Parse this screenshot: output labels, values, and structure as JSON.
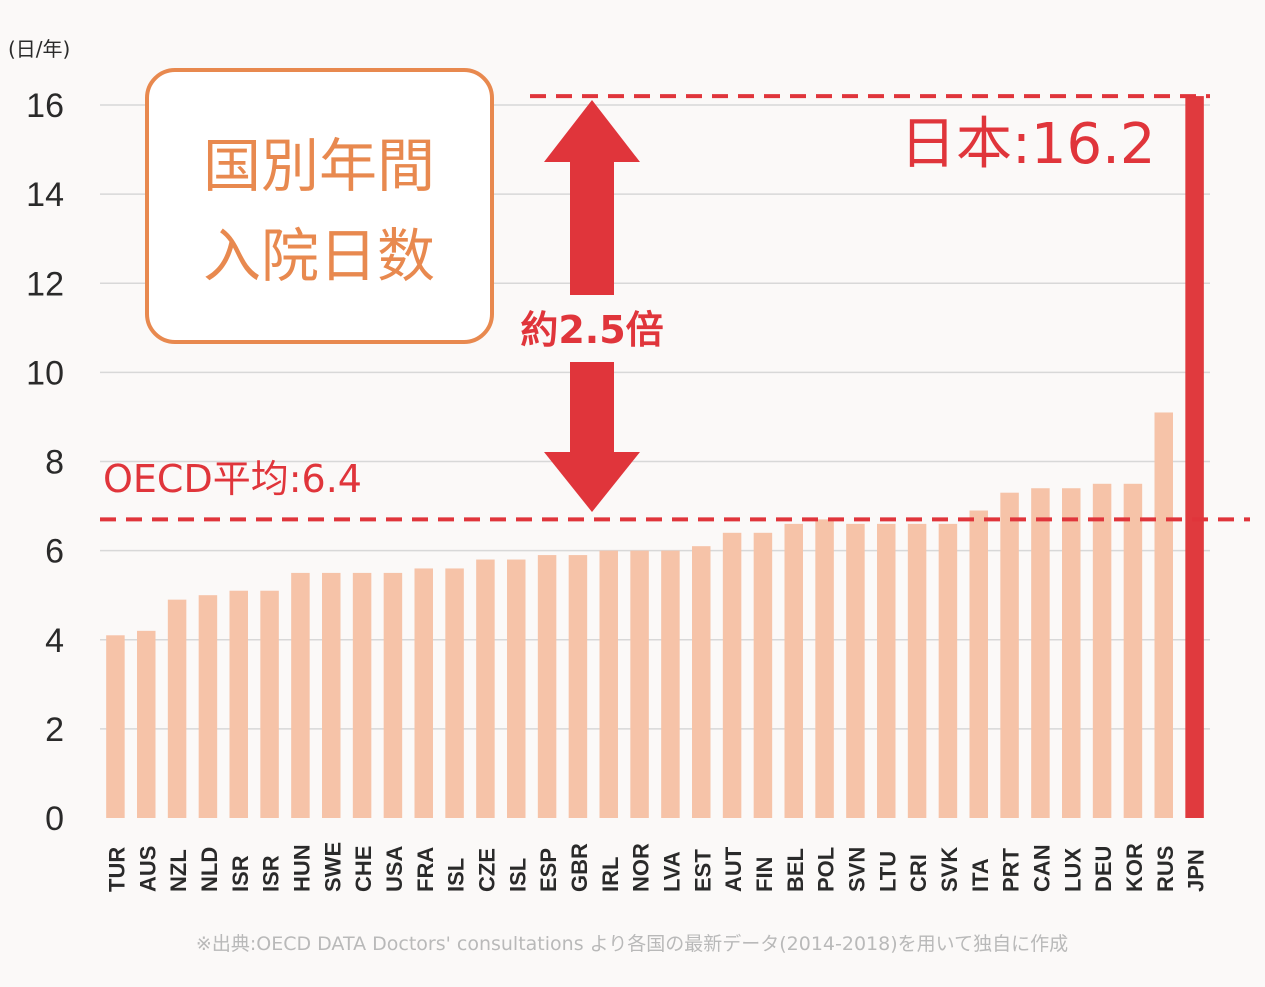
{
  "chart_data": {
    "type": "bar",
    "title": "国別年間\n入院日数",
    "ylabel": "(日/年)",
    "ylim": [
      0,
      16
    ],
    "yticks": [
      0,
      2,
      4,
      6,
      8,
      10,
      12,
      14,
      16
    ],
    "grid": true,
    "categories": [
      "TUR",
      "AUS",
      "NZL",
      "NLD",
      "ISR",
      "ISR",
      "HUN",
      "SWE",
      "CHE",
      "USA",
      "FRA",
      "ISL",
      "CZE",
      "ISL",
      "ESP",
      "GBR",
      "IRL",
      "NOR",
      "LVA",
      "EST",
      "AUT",
      "FIN",
      "BEL",
      "POL",
      "SVN",
      "LTU",
      "CRI",
      "SVK",
      "ITA",
      "PRT",
      "CAN",
      "LUX",
      "DEU",
      "KOR",
      "RUS",
      "JPN"
    ],
    "values": [
      4.1,
      4.2,
      4.9,
      5.0,
      5.1,
      5.1,
      5.5,
      5.5,
      5.5,
      5.5,
      5.6,
      5.6,
      5.8,
      5.8,
      5.9,
      5.9,
      6.0,
      6.0,
      6.0,
      6.1,
      6.4,
      6.4,
      6.6,
      6.7,
      6.6,
      6.6,
      6.6,
      6.6,
      6.9,
      7.3,
      7.4,
      7.4,
      7.5,
      7.5,
      9.1,
      16.2
    ],
    "highlight_category": "JPN",
    "annotations": {
      "oecd_label": "OECD平均:6.4",
      "japan_label": "日本:16.2",
      "ratio_label": "約2.5倍"
    },
    "source": "※出典:OECD DATA Doctors' consultations より各国の最新データ(2014-2018)を用いて独自に作成",
    "colors": {
      "bar": "#f6c3a8",
      "highlight_bar": "#e03a3e",
      "accent_red": "#e0353b",
      "title_box": "#e8894f",
      "title_text": "#e8894f",
      "grid": "#d8d8d8",
      "axis_text": "#2a2a2a",
      "background": "#fbf9f8"
    }
  }
}
